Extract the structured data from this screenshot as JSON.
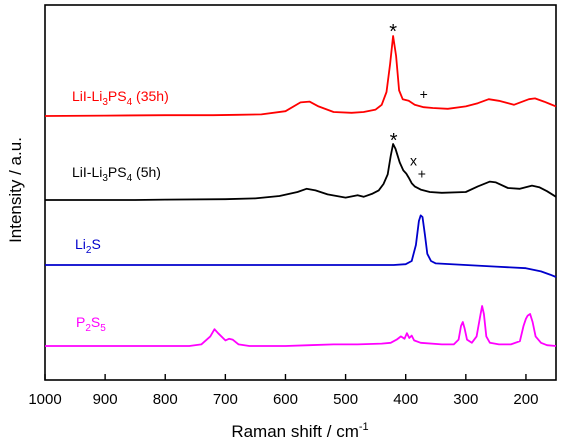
{
  "chart_data": {
    "type": "line",
    "xlabel": "Raman shift / cm",
    "xlabel_sup": "-1",
    "ylabel": "Intensity / a.u.",
    "xlim": [
      1000,
      150
    ],
    "x_reversed": true,
    "x_ticks": [
      1000,
      900,
      800,
      700,
      600,
      500,
      400,
      300,
      200
    ],
    "y_ticks_shown": false,
    "grid": false,
    "series": [
      {
        "name_parts": [
          [
            "LiI-Li",
            ""
          ],
          [
            "3",
            "sub"
          ],
          [
            "PS",
            ""
          ],
          [
            "4",
            "sub"
          ],
          [
            " (35h)",
            ""
          ]
        ],
        "color": "#ff0000",
        "baseline": 0,
        "points": [
          [
            1000,
            0
          ],
          [
            900,
            0.5
          ],
          [
            800,
            1
          ],
          [
            720,
            1
          ],
          [
            680,
            1.5
          ],
          [
            640,
            2
          ],
          [
            600,
            6
          ],
          [
            575,
            17
          ],
          [
            560,
            18
          ],
          [
            545,
            12
          ],
          [
            520,
            5
          ],
          [
            490,
            4
          ],
          [
            470,
            5
          ],
          [
            450,
            8
          ],
          [
            440,
            14
          ],
          [
            432,
            30
          ],
          [
            426,
            65
          ],
          [
            421,
            100
          ],
          [
            416,
            75
          ],
          [
            411,
            32
          ],
          [
            405,
            21
          ],
          [
            400,
            20
          ],
          [
            395,
            19
          ],
          [
            385,
            14
          ],
          [
            370,
            11
          ],
          [
            355,
            10
          ],
          [
            330,
            9
          ],
          [
            300,
            12
          ],
          [
            280,
            16
          ],
          [
            262,
            21
          ],
          [
            245,
            19
          ],
          [
            220,
            14
          ],
          [
            195,
            21
          ],
          [
            185,
            22
          ],
          [
            170,
            18
          ],
          [
            160,
            15
          ],
          [
            150,
            12
          ]
        ]
      },
      {
        "name_parts": [
          [
            "LiI-Li",
            ""
          ],
          [
            "3",
            "sub"
          ],
          [
            "PS",
            ""
          ],
          [
            "4",
            "sub"
          ],
          [
            " (5h)",
            ""
          ]
        ],
        "color": "#000000",
        "baseline": 0,
        "points": [
          [
            1000,
            0
          ],
          [
            850,
            0
          ],
          [
            800,
            0.5
          ],
          [
            700,
            1
          ],
          [
            650,
            2
          ],
          [
            610,
            5
          ],
          [
            580,
            10
          ],
          [
            565,
            14
          ],
          [
            550,
            12
          ],
          [
            530,
            7
          ],
          [
            500,
            3
          ],
          [
            480,
            6
          ],
          [
            470,
            4
          ],
          [
            455,
            8
          ],
          [
            445,
            12
          ],
          [
            437,
            20
          ],
          [
            430,
            32
          ],
          [
            425,
            55
          ],
          [
            421,
            70
          ],
          [
            417,
            64
          ],
          [
            410,
            47
          ],
          [
            404,
            37
          ],
          [
            399,
            33
          ],
          [
            395,
            28
          ],
          [
            390,
            21
          ],
          [
            385,
            17
          ],
          [
            375,
            13
          ],
          [
            360,
            10
          ],
          [
            340,
            9
          ],
          [
            300,
            10
          ],
          [
            280,
            17
          ],
          [
            260,
            23
          ],
          [
            250,
            22
          ],
          [
            230,
            15
          ],
          [
            210,
            14
          ],
          [
            190,
            18
          ],
          [
            178,
            16
          ],
          [
            165,
            11
          ],
          [
            150,
            4
          ]
        ]
      },
      {
        "name_parts": [
          [
            "Li",
            ""
          ],
          [
            "2",
            "sub"
          ],
          [
            "S",
            ""
          ]
        ],
        "color": "#0000cc",
        "baseline": 0,
        "points": [
          [
            1000,
            0
          ],
          [
            700,
            0
          ],
          [
            500,
            0
          ],
          [
            420,
            0
          ],
          [
            400,
            1
          ],
          [
            390,
            5
          ],
          [
            383,
            25
          ],
          [
            378,
            55
          ],
          [
            375,
            62
          ],
          [
            372,
            60
          ],
          [
            368,
            38
          ],
          [
            364,
            14
          ],
          [
            358,
            5
          ],
          [
            350,
            2
          ],
          [
            300,
            0
          ],
          [
            250,
            -2
          ],
          [
            200,
            -4
          ],
          [
            175,
            -8
          ],
          [
            160,
            -12
          ],
          [
            150,
            -15
          ]
        ]
      },
      {
        "name_parts": [
          [
            "P",
            ""
          ],
          [
            "2",
            "sub"
          ],
          [
            "S",
            ""
          ],
          [
            "5",
            "sub"
          ]
        ],
        "color": "#ff00ff",
        "baseline": 0,
        "points": [
          [
            1000,
            0
          ],
          [
            760,
            0
          ],
          [
            740,
            2
          ],
          [
            725,
            12
          ],
          [
            718,
            21
          ],
          [
            712,
            16
          ],
          [
            700,
            7
          ],
          [
            694,
            9
          ],
          [
            688,
            8
          ],
          [
            678,
            2
          ],
          [
            660,
            0
          ],
          [
            600,
            0
          ],
          [
            560,
            1
          ],
          [
            520,
            2
          ],
          [
            480,
            2
          ],
          [
            440,
            3
          ],
          [
            425,
            4
          ],
          [
            415,
            8
          ],
          [
            408,
            12
          ],
          [
            402,
            9
          ],
          [
            398,
            16
          ],
          [
            394,
            10
          ],
          [
            390,
            13
          ],
          [
            386,
            7
          ],
          [
            375,
            4
          ],
          [
            340,
            2
          ],
          [
            320,
            2
          ],
          [
            312,
            8
          ],
          [
            308,
            25
          ],
          [
            305,
            30
          ],
          [
            302,
            22
          ],
          [
            298,
            8
          ],
          [
            290,
            4
          ],
          [
            282,
            12
          ],
          [
            276,
            38
          ],
          [
            273,
            50
          ],
          [
            270,
            40
          ],
          [
            266,
            12
          ],
          [
            260,
            4
          ],
          [
            245,
            2
          ],
          [
            225,
            2
          ],
          [
            210,
            6
          ],
          [
            204,
            25
          ],
          [
            200,
            34
          ],
          [
            197,
            38
          ],
          [
            193,
            40
          ],
          [
            189,
            30
          ],
          [
            184,
            12
          ],
          [
            175,
            4
          ],
          [
            165,
            1
          ],
          [
            150,
            0
          ]
        ]
      }
    ],
    "annotations": [
      {
        "text": "*",
        "x": 421,
        "series": 0,
        "size": "big"
      },
      {
        "text": "+",
        "x": 385,
        "series": 0,
        "size": "small"
      },
      {
        "text": "*",
        "x": 420,
        "series": 1,
        "size": "big"
      },
      {
        "text": "x",
        "x": 402,
        "series": 1,
        "size": "small"
      },
      {
        "text": "+",
        "x": 388,
        "series": 1,
        "size": "small"
      }
    ]
  }
}
